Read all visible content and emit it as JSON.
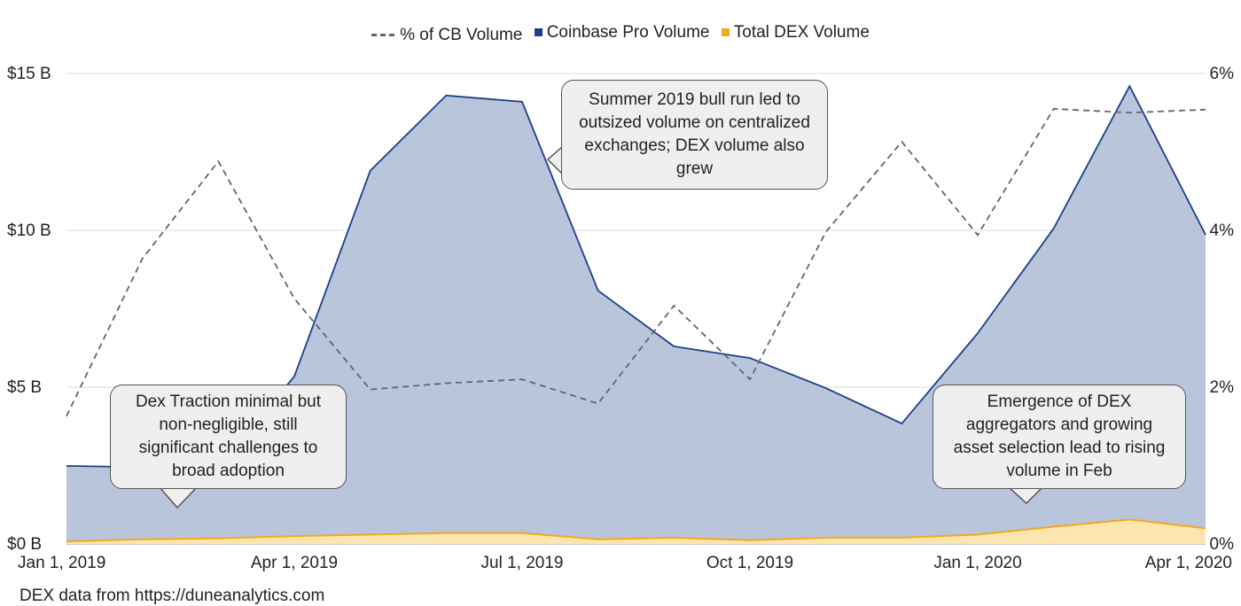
{
  "chart_data": {
    "type": "area",
    "x": [
      "Jan 2019",
      "Feb 2019",
      "Mar 2019",
      "Apr 2019",
      "May 2019",
      "Jun 2019",
      "Jul 2019",
      "Aug 2019",
      "Sep 2019",
      "Oct 2019",
      "Nov 2019",
      "Dec 2019",
      "Jan 2020",
      "Feb 2020",
      "Mar 2020",
      "Apr 2020"
    ],
    "x_tick_labels": [
      "Jan 1, 2019",
      "Apr 1, 2019",
      "Jul 1, 2019",
      "Oct 1, 2019",
      "Jan 1, 2020",
      "Apr 1, 2020"
    ],
    "y_tick_labels": [
      "$0 B",
      "$5 B",
      "$10 B",
      "$15 B"
    ],
    "y2_tick_labels": [
      "0%",
      "2%",
      "4%",
      "6%"
    ],
    "ylim": [
      0,
      15
    ],
    "y2lim": [
      0,
      6
    ],
    "grid": true,
    "legend_position": "top",
    "series": [
      {
        "name": "% of CB Volume",
        "axis": "right",
        "style": "dashed-line",
        "color": "#666666",
        "values": [
          1.63,
          3.64,
          4.88,
          3.13,
          1.97,
          2.05,
          2.1,
          1.79,
          3.04,
          2.1,
          3.98,
          5.13,
          3.94,
          5.55,
          5.5,
          5.54
        ]
      },
      {
        "name": "Coinbase Pro Volume",
        "axis": "left",
        "style": "area",
        "color": "#1c3f8a",
        "fill": "#b8c5db",
        "values": [
          2.49,
          2.45,
          2.45,
          5.34,
          11.9,
          14.3,
          14.1,
          8.08,
          6.3,
          5.93,
          4.97,
          3.84,
          6.72,
          10.06,
          14.6,
          9.86
        ]
      },
      {
        "name": "Total DEX Volume",
        "axis": "left",
        "style": "area",
        "color": "#f4a81d",
        "fill": "#fde5b0",
        "values": [
          0.08,
          0.15,
          0.18,
          0.25,
          0.3,
          0.35,
          0.35,
          0.15,
          0.2,
          0.12,
          0.2,
          0.2,
          0.3,
          0.55,
          0.78,
          0.5
        ]
      }
    ],
    "annotations": [
      "Summer 2019 bull run led to outsized volume on centralized exchanges; DEX volume also grew",
      "Dex Traction minimal but non-negligible, still significant challenges to broad adoption",
      "Emergence of DEX aggregators and growing asset selection lead to rising volume in Feb"
    ]
  },
  "footnote": "DEX data from https://duneanalytics.com"
}
